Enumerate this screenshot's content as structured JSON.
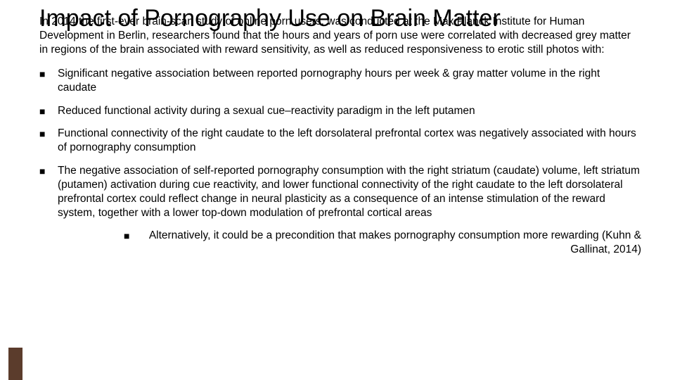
{
  "title": "Impact of Pornography Use on Brain Matter",
  "intro": "In 2014 the first-ever brain-scan study of online porn users, was conducted at the Max Planck Institute for Human Development in Berlin, researchers found that the hours and years of porn use were correlated with decreased grey matter in regions of the brain associated with reward sensitivity, as well as reduced responsiveness to erotic still photos with:",
  "bullets": [
    "Significant negative association between reported pornography hours per week & gray matter volume in the right caudate",
    "Reduced functional activity during a sexual cue–reactivity paradigm in the left putamen",
    "Functional connectivity of the right caudate to the left dorsolateral prefrontal cortex was negatively associated with hours of pornography consumption",
    "The negative association of self-reported pornography consumption with the right striatum (caudate) volume, left striatum (putamen) activation during cue reactivity, and lower functional connectivity of the right caudate to the left dorsolateral prefrontal cortex could reflect change in neural plasticity as a consequence of an intense stimulation of the reward system, together with a lower top-down modulation of prefrontal cortical areas"
  ],
  "sub_bullet": "Alternatively, it could be a precondition that makes pornography consumption more rewarding (Kuhn & Gallinat, 2014)",
  "accent_color": "#5b3c2c",
  "bullet_glyph": "■"
}
